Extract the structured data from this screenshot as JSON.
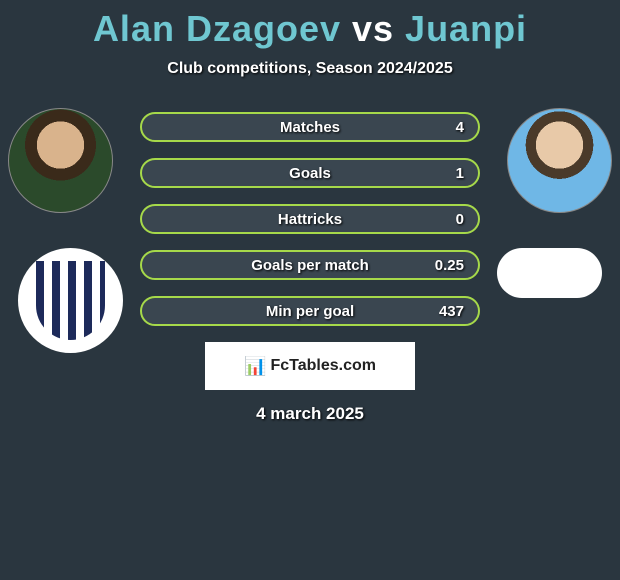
{
  "title": {
    "text_left": "Alan Dzagoev",
    "text_vs": " vs ",
    "text_right": "Juanpi",
    "color_left": "#6fc7d1",
    "color_vs": "#ffffff",
    "color_right": "#6fc7d1",
    "fontsize": 36
  },
  "subtitle": "Club competitions, Season 2024/2025",
  "bars": {
    "border_color": "#a6d94a",
    "fill_color": "#3a4650",
    "label_color": "#ffffff",
    "value_color": "#ffffff",
    "items": [
      {
        "label": "Matches",
        "value": "4"
      },
      {
        "label": "Goals",
        "value": "1"
      },
      {
        "label": "Hattricks",
        "value": "0"
      },
      {
        "label": "Goals per match",
        "value": "0.25"
      },
      {
        "label": "Min per goal",
        "value": "437"
      }
    ]
  },
  "branding": {
    "text": "FcTables.com",
    "background": "#ffffff",
    "text_color": "#222222"
  },
  "date": "4 march 2025",
  "background_color": "#2a363f"
}
